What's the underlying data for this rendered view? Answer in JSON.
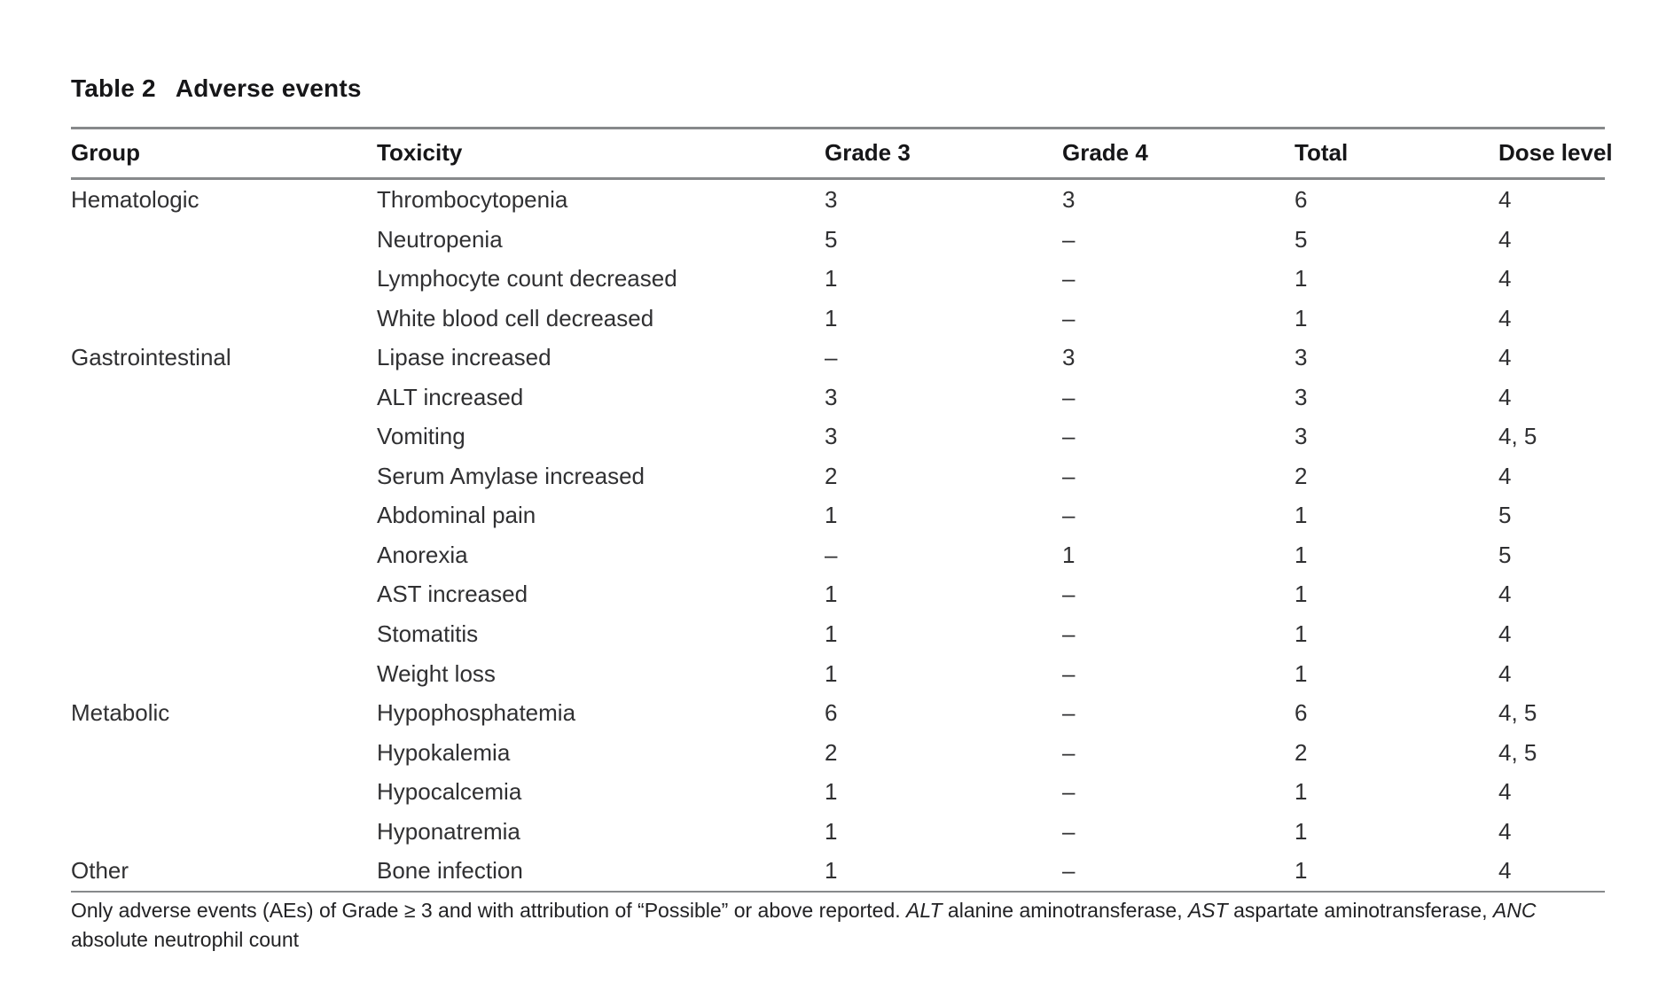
{
  "title": {
    "label": "Table 2",
    "caption": "Adverse events"
  },
  "colors": {
    "rule": "#87898b",
    "body_text": "#303032",
    "heading_text": "#161618"
  },
  "table": {
    "columns": [
      "Group",
      "Toxicity",
      "Grade 3",
      "Grade 4",
      "Total",
      "Dose level"
    ],
    "rows": [
      {
        "group": "Hematologic",
        "toxicity": "Thrombocytopenia",
        "grade3": "3",
        "grade4": "3",
        "total": "6",
        "dose": "4"
      },
      {
        "group": "",
        "toxicity": "Neutropenia",
        "grade3": "5",
        "grade4": "–",
        "total": "5",
        "dose": "4"
      },
      {
        "group": "",
        "toxicity": "Lymphocyte count decreased",
        "grade3": "1",
        "grade4": "–",
        "total": "1",
        "dose": "4"
      },
      {
        "group": "",
        "toxicity": "White blood cell decreased",
        "grade3": "1",
        "grade4": "–",
        "total": "1",
        "dose": "4"
      },
      {
        "group": "Gastrointestinal",
        "toxicity": "Lipase increased",
        "grade3": "–",
        "grade4": "3",
        "total": "3",
        "dose": "4"
      },
      {
        "group": "",
        "toxicity": "ALT increased",
        "grade3": "3",
        "grade4": "–",
        "total": "3",
        "dose": "4"
      },
      {
        "group": "",
        "toxicity": "Vomiting",
        "grade3": "3",
        "grade4": "–",
        "total": "3",
        "dose": "4, 5"
      },
      {
        "group": "",
        "toxicity": "Serum Amylase increased",
        "grade3": "2",
        "grade4": "–",
        "total": "2",
        "dose": "4"
      },
      {
        "group": "",
        "toxicity": "Abdominal pain",
        "grade3": "1",
        "grade4": "–",
        "total": "1",
        "dose": "5"
      },
      {
        "group": "",
        "toxicity": "Anorexia",
        "grade3": "–",
        "grade4": "1",
        "total": "1",
        "dose": "5"
      },
      {
        "group": "",
        "toxicity": "AST increased",
        "grade3": "1",
        "grade4": "–",
        "total": "1",
        "dose": "4"
      },
      {
        "group": "",
        "toxicity": "Stomatitis",
        "grade3": "1",
        "grade4": "–",
        "total": "1",
        "dose": "4"
      },
      {
        "group": "",
        "toxicity": "Weight loss",
        "grade3": "1",
        "grade4": "–",
        "total": "1",
        "dose": "4"
      },
      {
        "group": "Metabolic",
        "toxicity": "Hypophosphatemia",
        "grade3": "6",
        "grade4": "–",
        "total": "6",
        "dose": "4, 5"
      },
      {
        "group": "",
        "toxicity": "Hypokalemia",
        "grade3": "2",
        "grade4": "–",
        "total": "2",
        "dose": "4, 5"
      },
      {
        "group": "",
        "toxicity": "Hypocalcemia",
        "grade3": "1",
        "grade4": "–",
        "total": "1",
        "dose": "4"
      },
      {
        "group": "",
        "toxicity": "Hyponatremia",
        "grade3": "1",
        "grade4": "–",
        "total": "1",
        "dose": "4"
      },
      {
        "group": "Other",
        "toxicity": "Bone infection",
        "grade3": "1",
        "grade4": "–",
        "total": "1",
        "dose": "4"
      }
    ]
  },
  "footnote": {
    "lines": [
      [
        {
          "text": "Only adverse events (AEs) of Grade ≥ 3 and with attribution of “Possible” or above reported. ",
          "italic": false
        },
        {
          "text": "ALT",
          "italic": true
        },
        {
          "text": " alanine aminotransferase, ",
          "italic": false
        },
        {
          "text": "AST",
          "italic": true
        },
        {
          "text": " aspartate aminotransferase, ",
          "italic": false
        },
        {
          "text": "ANC",
          "italic": true
        }
      ],
      [
        {
          "text": "absolute neutrophil count",
          "italic": false
        }
      ]
    ]
  }
}
